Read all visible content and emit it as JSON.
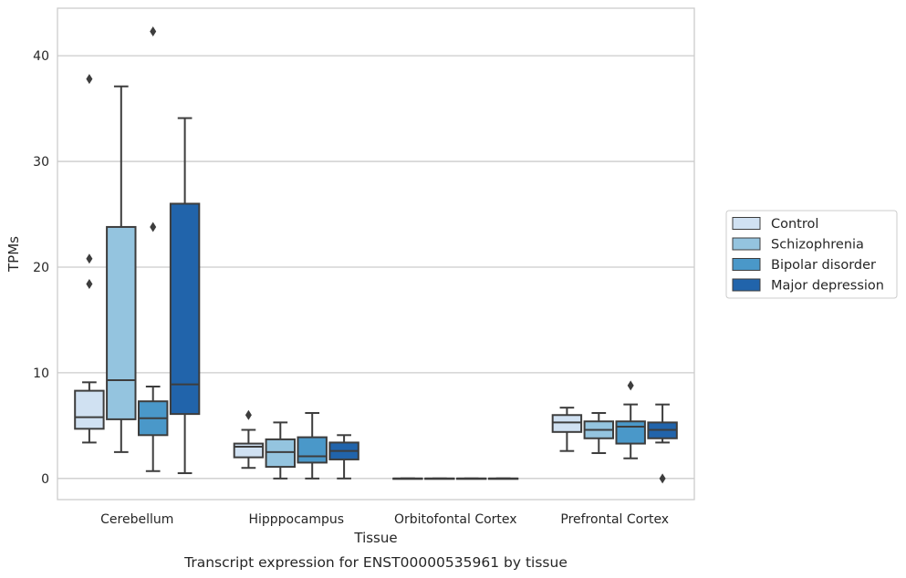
{
  "caption": "Transcript expression for ENST00000535961 by tissue",
  "chart_data": {
    "type": "box",
    "xlabel": "Tissue",
    "ylabel": "TPMs",
    "categories": [
      "Cerebellum",
      "Hipppocampus",
      "Orbitofontal Cortex",
      "Prefrontal Cortex"
    ],
    "ylim": [
      -2,
      44.5
    ],
    "yticks": [
      0,
      10,
      20,
      30,
      40
    ],
    "grid": "horizontal",
    "legend_position": "right",
    "series": [
      {
        "name": "Control",
        "color": "#d0e1f2",
        "boxes": [
          {
            "q1": 4.7,
            "median": 5.8,
            "q3": 8.3,
            "whisker_low": 3.4,
            "whisker_high": 9.1,
            "fliers": [
              18.4,
              20.8,
              37.8
            ]
          },
          {
            "q1": 2.0,
            "median": 3.0,
            "q3": 3.3,
            "whisker_low": 1.0,
            "whisker_high": 4.6,
            "fliers": [
              6.0
            ]
          },
          {
            "q1": 0,
            "median": 0,
            "q3": 0,
            "whisker_low": 0,
            "whisker_high": 0,
            "fliers": []
          },
          {
            "q1": 4.4,
            "median": 5.3,
            "q3": 6.0,
            "whisker_low": 2.6,
            "whisker_high": 6.7,
            "fliers": []
          }
        ]
      },
      {
        "name": "Schizophrenia",
        "color": "#94c4df",
        "boxes": [
          {
            "q1": 5.6,
            "median": 9.3,
            "q3": 23.8,
            "whisker_low": 2.5,
            "whisker_high": 37.1,
            "fliers": []
          },
          {
            "q1": 1.1,
            "median": 2.5,
            "q3": 3.7,
            "whisker_low": 0,
            "whisker_high": 5.3,
            "fliers": []
          },
          {
            "q1": 0,
            "median": 0,
            "q3": 0,
            "whisker_low": 0,
            "whisker_high": 0,
            "fliers": []
          },
          {
            "q1": 3.8,
            "median": 4.6,
            "q3": 5.4,
            "whisker_low": 2.4,
            "whisker_high": 6.2,
            "fliers": []
          }
        ]
      },
      {
        "name": "Bipolar disorder",
        "color": "#4a98c9",
        "boxes": [
          {
            "q1": 4.1,
            "median": 5.7,
            "q3": 7.3,
            "whisker_low": 0.7,
            "whisker_high": 8.7,
            "fliers": [
              23.8,
              42.3
            ]
          },
          {
            "q1": 1.5,
            "median": 2.1,
            "q3": 3.9,
            "whisker_low": 0,
            "whisker_high": 6.2,
            "fliers": []
          },
          {
            "q1": 0,
            "median": 0,
            "q3": 0,
            "whisker_low": 0,
            "whisker_high": 0,
            "fliers": []
          },
          {
            "q1": 3.3,
            "median": 4.9,
            "q3": 5.4,
            "whisker_low": 1.9,
            "whisker_high": 7.0,
            "fliers": [
              8.8
            ]
          }
        ]
      },
      {
        "name": "Major depression",
        "color": "#2164ab",
        "boxes": [
          {
            "q1": 6.1,
            "median": 8.9,
            "q3": 26.0,
            "whisker_low": 0.5,
            "whisker_high": 34.1,
            "fliers": []
          },
          {
            "q1": 1.8,
            "median": 2.6,
            "q3": 3.4,
            "whisker_low": 0,
            "whisker_high": 4.1,
            "fliers": []
          },
          {
            "q1": 0,
            "median": 0,
            "q3": 0,
            "whisker_low": 0,
            "whisker_high": 0,
            "fliers": []
          },
          {
            "q1": 3.8,
            "median": 4.6,
            "q3": 5.3,
            "whisker_low": 3.4,
            "whisker_high": 7.0,
            "fliers": [
              0.0
            ]
          }
        ]
      }
    ]
  }
}
